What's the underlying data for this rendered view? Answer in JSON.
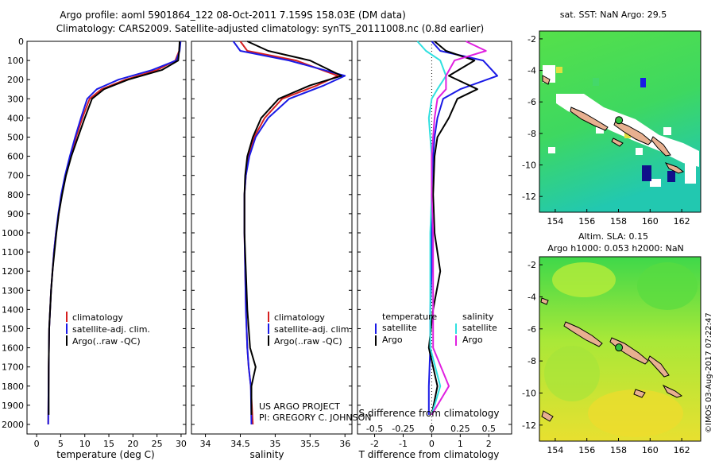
{
  "header": {
    "title_line1": "Argo profile: aoml 5901864_122 08-Oct-2011 7.159S 158.03E (DM data)",
    "title_line2": "Climatology: CARS2009. Satellite-adjusted climatology: synTS_20111008.nc (0.8d earlier)"
  },
  "credits": {
    "project": "US ARGO PROJECT",
    "pi": "PI: GREGORY C. JOHNSON",
    "stamp": "©IMOS 03-Aug-2017 07:22:47"
  },
  "colors": {
    "climatology": "#d62020",
    "satellite": "#1a1ae6",
    "argo": "#000000",
    "sal_satellite": "#30e0e0",
    "sal_argo": "#e020e0"
  },
  "chart_data": [
    {
      "type": "line",
      "name": "temperature-profile",
      "xlabel": "temperature (deg C)",
      "ylabel": "",
      "xlim": [
        -2,
        31
      ],
      "ylim": [
        2050,
        0
      ],
      "xticks": [
        "0",
        "5",
        "10",
        "15",
        "20",
        "25",
        "30"
      ],
      "xtick_values": [
        0,
        5,
        10,
        15,
        20,
        25,
        30
      ],
      "yticks": [
        "0",
        "100",
        "200",
        "300",
        "400",
        "500",
        "600",
        "700",
        "800",
        "900",
        "1000",
        "1100",
        "1200",
        "1300",
        "1400",
        "1500",
        "1600",
        "1700",
        "1800",
        "1900",
        "2000"
      ],
      "legend": [
        "climatology",
        "satellite-adj. clim.",
        "Argo(..raw -QC)"
      ],
      "series": [
        {
          "name": "climatology",
          "color": "#d62020",
          "x": [
            29.8,
            29.6,
            28.8,
            25.0,
            18.5,
            13.5,
            11.0,
            9.5,
            8.2,
            7.0,
            6.0,
            5.2,
            4.6,
            4.0,
            3.6,
            3.3,
            3.0,
            2.8,
            2.6,
            2.5,
            2.4
          ],
          "y": [
            0,
            50,
            100,
            150,
            200,
            250,
            300,
            400,
            500,
            600,
            700,
            800,
            900,
            1000,
            1100,
            1200,
            1300,
            1400,
            1500,
            1700,
            2000
          ]
        },
        {
          "name": "satellite",
          "color": "#1a1ae6",
          "x": [
            29.9,
            29.7,
            29.0,
            24.0,
            17.0,
            12.5,
            10.5,
            9.2,
            8.0,
            6.9,
            5.9,
            5.1,
            4.5,
            4.0,
            3.6,
            3.3,
            3.0,
            2.8,
            2.6,
            2.5,
            2.4
          ],
          "y": [
            0,
            50,
            100,
            150,
            200,
            250,
            300,
            400,
            500,
            600,
            700,
            800,
            900,
            1000,
            1100,
            1200,
            1300,
            1400,
            1500,
            1700,
            2000
          ]
        },
        {
          "name": "argo",
          "color": "#000000",
          "x": [
            29.7,
            29.6,
            29.4,
            26.0,
            19.0,
            14.0,
            11.5,
            10.0,
            8.6,
            7.2,
            6.1,
            5.3,
            4.6,
            4.1,
            3.7,
            3.3,
            3.0,
            2.8,
            2.6,
            2.5,
            2.5
          ],
          "y": [
            0,
            50,
            100,
            150,
            200,
            250,
            300,
            400,
            500,
            600,
            700,
            800,
            900,
            1000,
            1100,
            1200,
            1300,
            1400,
            1500,
            1700,
            1950
          ]
        }
      ]
    },
    {
      "type": "line",
      "name": "salinity-profile",
      "xlabel": "salinity",
      "xlim": [
        33.8,
        36.1
      ],
      "ylim": [
        2050,
        0
      ],
      "xticks": [
        "34",
        "34.5",
        "35",
        "35.5",
        "36"
      ],
      "xtick_values": [
        34,
        34.5,
        35,
        35.5,
        36
      ],
      "legend": [
        "climatology",
        "satellite-adj. clim.",
        "Argo(..raw -QC)"
      ],
      "series": [
        {
          "name": "climatology",
          "color": "#d62020",
          "x": [
            34.5,
            34.6,
            35.3,
            35.9,
            35.6,
            35.1,
            34.85,
            34.7,
            34.62,
            34.58,
            34.56,
            34.56,
            34.57,
            34.58,
            34.6,
            34.62,
            34.65,
            34.68
          ],
          "y": [
            0,
            50,
            100,
            180,
            230,
            300,
            400,
            500,
            600,
            700,
            800,
            1000,
            1200,
            1400,
            1600,
            1700,
            1800,
            2000
          ]
        },
        {
          "name": "satellite",
          "color": "#1a1ae6",
          "x": [
            34.4,
            34.5,
            35.2,
            36.0,
            35.7,
            35.2,
            34.9,
            34.72,
            34.63,
            34.58,
            34.56,
            34.56,
            34.57,
            34.58,
            34.6,
            34.62,
            34.65,
            34.66
          ],
          "y": [
            0,
            50,
            100,
            180,
            230,
            300,
            400,
            500,
            600,
            700,
            800,
            1000,
            1200,
            1400,
            1600,
            1700,
            1800,
            2000
          ]
        },
        {
          "name": "argo",
          "color": "#000000",
          "x": [
            34.6,
            34.9,
            35.5,
            35.95,
            35.5,
            35.05,
            34.8,
            34.68,
            34.6,
            34.57,
            34.56,
            34.56,
            34.58,
            34.6,
            34.64,
            34.72,
            34.66,
            34.66
          ],
          "y": [
            0,
            50,
            100,
            180,
            230,
            300,
            400,
            500,
            600,
            700,
            800,
            1000,
            1200,
            1400,
            1600,
            1700,
            1800,
            1950
          ]
        }
      ]
    },
    {
      "type": "line",
      "name": "difference-profile",
      "xlabel_top": "S difference from climatology",
      "xlabel": "T difference from climatology",
      "xlim": [
        -2.6,
        2.8
      ],
      "ylim": [
        2050,
        0
      ],
      "xticks": [
        "-2",
        "-1",
        "0",
        "1",
        "2"
      ],
      "xtick_values": [
        -2,
        -1,
        0,
        1,
        2
      ],
      "sticks": [
        "-0.5",
        "-0.25",
        "0",
        "0.25",
        "0.5"
      ],
      "stick_values": [
        -2,
        -1,
        0,
        1,
        2
      ],
      "legend_temperature_title": "temperature",
      "legend_salinity_title": "salinity",
      "legend_temperature": [
        "satellite",
        "Argo"
      ],
      "legend_salinity": [
        "satellite",
        "Argo"
      ],
      "series": [
        {
          "name": "T satellite",
          "color": "#1a1ae6",
          "x": [
            0,
            0.3,
            1.8,
            2.3,
            1.0,
            0.4,
            0.2,
            0.1,
            0.05,
            0,
            0,
            0,
            -0.05,
            -0.05,
            -0.1,
            -0.1
          ],
          "y": [
            0,
            50,
            100,
            180,
            250,
            300,
            400,
            500,
            600,
            800,
            1000,
            1200,
            1400,
            1600,
            1800,
            1950
          ]
        },
        {
          "name": "T argo",
          "color": "#000000",
          "x": [
            0.1,
            0.5,
            1.5,
            0.6,
            1.6,
            0.9,
            0.6,
            0.2,
            0.1,
            0.05,
            0.1,
            0.3,
            0.05,
            -0.1,
            0.2,
            0
          ],
          "y": [
            0,
            50,
            100,
            180,
            250,
            300,
            400,
            500,
            600,
            800,
            1000,
            1200,
            1400,
            1600,
            1800,
            1950
          ]
        },
        {
          "name": "S satellite",
          "color": "#30e0e0",
          "x": [
            -0.5,
            -0.2,
            0.3,
            0.5,
            0.2,
            0,
            -0.1,
            -0.05,
            0,
            0,
            -0.05,
            -0.05,
            -0.05,
            -0.05,
            0.3,
            0
          ],
          "y": [
            0,
            50,
            100,
            180,
            250,
            300,
            400,
            500,
            600,
            800,
            1000,
            1200,
            1400,
            1600,
            1800,
            1950
          ]
        },
        {
          "name": "S argo",
          "color": "#e020e0",
          "x": [
            1.2,
            1.9,
            0.8,
            0.5,
            0.5,
            0.2,
            0.1,
            0.05,
            0,
            0,
            0.05,
            0.05,
            0.05,
            0.05,
            0.6,
            0
          ],
          "y": [
            0,
            50,
            100,
            180,
            250,
            300,
            400,
            500,
            600,
            800,
            1000,
            1200,
            1400,
            1600,
            1800,
            1950
          ]
        }
      ]
    },
    {
      "type": "heatmap",
      "name": "sst-map",
      "title": "sat. SST: NaN Argo: 29.5",
      "xlim": [
        153,
        163.2
      ],
      "ylim": [
        -13,
        -1.5
      ],
      "xticks": [
        "154",
        "156",
        "158",
        "160",
        "162"
      ],
      "xtick_values": [
        154,
        156,
        158,
        160,
        162
      ],
      "yticks": [
        "-2",
        "-4",
        "-6",
        "-8",
        "-10",
        "-12"
      ],
      "ytick_values": [
        -2,
        -4,
        -6,
        -8,
        -10,
        -12
      ],
      "marker": {
        "lon": 158.03,
        "lat": -7.159
      }
    },
    {
      "type": "heatmap",
      "name": "sla-map",
      "title_line1": "Altim. SLA: 0.15",
      "title_line2": "Argo h1000: 0.053 h2000: NaN",
      "xlim": [
        153,
        163.2
      ],
      "ylim": [
        -13,
        -1.5
      ],
      "xticks": [
        "154",
        "156",
        "158",
        "160",
        "162"
      ],
      "xtick_values": [
        154,
        156,
        158,
        160,
        162
      ],
      "yticks": [
        "-2",
        "-4",
        "-6",
        "-8",
        "-10",
        "-12"
      ],
      "ytick_values": [
        -2,
        -4,
        -6,
        -8,
        -10,
        -12
      ],
      "marker": {
        "lon": 158.03,
        "lat": -7.159
      }
    }
  ]
}
